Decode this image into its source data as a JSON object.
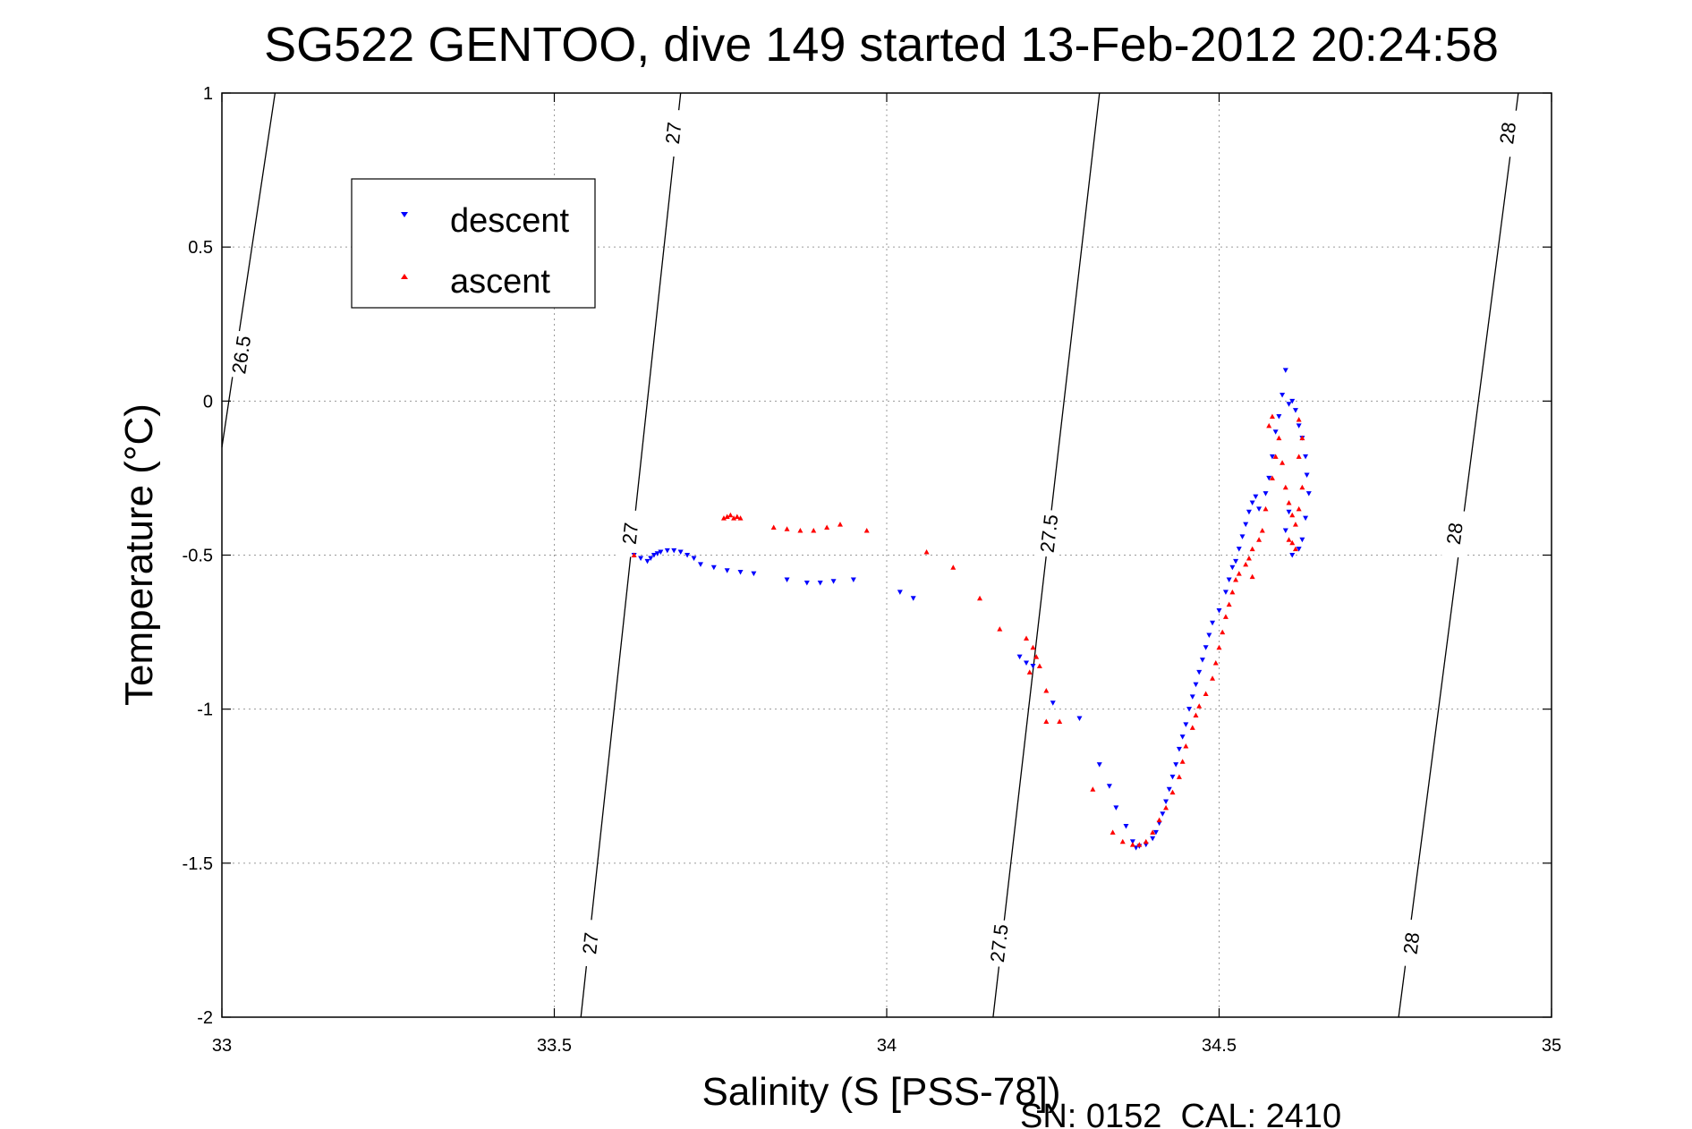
{
  "chart_data": {
    "type": "scatter",
    "title": "SG522 GENTOO, dive 149 started 13-Feb-2012 20:24:58",
    "xlabel": "Salinity (S [PSS-78])",
    "ylabel": "Temperature (°C)",
    "xlim": [
      33,
      35
    ],
    "ylim": [
      -2,
      1
    ],
    "x_ticks": [
      33,
      33.5,
      34,
      34.5,
      35
    ],
    "x_tick_labels": [
      "33",
      "33.5",
      "34",
      "34.5",
      "35"
    ],
    "y_ticks": [
      -2,
      -1.5,
      -1,
      -0.5,
      0,
      0.5,
      1
    ],
    "y_tick_labels": [
      "-2",
      "-1.5",
      "-1",
      "-0.5",
      "0",
      "0.5",
      "1"
    ],
    "grid": true,
    "legend_position": "top-left",
    "footer": "SN: 0152  CAL: 2410",
    "density_contours": [
      {
        "sigma": 26.5,
        "points": [
          [
            33.0,
            -0.15
          ],
          [
            33.08,
            1.0
          ]
        ],
        "labels": [
          {
            "text": "26.5",
            "x": 33.03,
            "y": 0.15
          }
        ]
      },
      {
        "sigma": 27,
        "points": [
          [
            33.54,
            -2.0
          ],
          [
            33.69,
            1.0
          ]
        ],
        "labels": [
          {
            "text": "27",
            "x": 33.555,
            "y": -1.76
          },
          {
            "text": "27",
            "x": 33.615,
            "y": -0.43
          },
          {
            "text": "27",
            "x": 33.68,
            "y": 0.87
          }
        ]
      },
      {
        "sigma": 27.5,
        "points": [
          [
            34.16,
            -2.0
          ],
          [
            34.32,
            1.0
          ]
        ],
        "labels": [
          {
            "text": "27.5",
            "x": 34.17,
            "y": -1.76
          },
          {
            "text": "27.5",
            "x": 34.245,
            "y": -0.43
          }
        ]
      },
      {
        "sigma": 28,
        "points": [
          [
            34.77,
            -2.0
          ],
          [
            34.95,
            1.0
          ]
        ],
        "labels": [
          {
            "text": "28",
            "x": 34.79,
            "y": -1.76
          },
          {
            "text": "28",
            "x": 34.855,
            "y": -0.43
          },
          {
            "text": "28",
            "x": 34.935,
            "y": 0.87
          }
        ]
      }
    ],
    "series": [
      {
        "name": "descent",
        "color": "#0000ff",
        "marker": "triangle-down",
        "points": [
          [
            33.62,
            -0.5
          ],
          [
            33.63,
            -0.51
          ],
          [
            33.64,
            -0.52
          ],
          [
            33.645,
            -0.51
          ],
          [
            33.65,
            -0.5
          ],
          [
            33.655,
            -0.495
          ],
          [
            33.66,
            -0.49
          ],
          [
            33.67,
            -0.485
          ],
          [
            33.68,
            -0.485
          ],
          [
            33.69,
            -0.49
          ],
          [
            33.7,
            -0.5
          ],
          [
            33.71,
            -0.51
          ],
          [
            33.72,
            -0.53
          ],
          [
            33.74,
            -0.54
          ],
          [
            33.76,
            -0.55
          ],
          [
            33.78,
            -0.555
          ],
          [
            33.8,
            -0.56
          ],
          [
            33.85,
            -0.58
          ],
          [
            33.88,
            -0.59
          ],
          [
            33.9,
            -0.59
          ],
          [
            33.92,
            -0.585
          ],
          [
            33.95,
            -0.58
          ],
          [
            34.02,
            -0.62
          ],
          [
            34.04,
            -0.64
          ],
          [
            34.2,
            -0.83
          ],
          [
            34.21,
            -0.85
          ],
          [
            34.22,
            -0.86
          ],
          [
            34.25,
            -0.98
          ],
          [
            34.29,
            -1.03
          ],
          [
            34.32,
            -1.18
          ],
          [
            34.335,
            -1.25
          ],
          [
            34.345,
            -1.32
          ],
          [
            34.36,
            -1.38
          ],
          [
            34.37,
            -1.43
          ],
          [
            34.375,
            -1.45
          ],
          [
            34.38,
            -1.445
          ],
          [
            34.39,
            -1.44
          ],
          [
            34.4,
            -1.42
          ],
          [
            34.405,
            -1.4
          ],
          [
            34.41,
            -1.37
          ],
          [
            34.415,
            -1.34
          ],
          [
            34.42,
            -1.3
          ],
          [
            34.425,
            -1.26
          ],
          [
            34.43,
            -1.22
          ],
          [
            34.435,
            -1.18
          ],
          [
            34.44,
            -1.13
          ],
          [
            34.445,
            -1.09
          ],
          [
            34.45,
            -1.05
          ],
          [
            34.455,
            -1.0
          ],
          [
            34.46,
            -0.96
          ],
          [
            34.465,
            -0.92
          ],
          [
            34.47,
            -0.88
          ],
          [
            34.475,
            -0.84
          ],
          [
            34.48,
            -0.8
          ],
          [
            34.485,
            -0.76
          ],
          [
            34.49,
            -0.72
          ],
          [
            34.5,
            -0.68
          ],
          [
            34.51,
            -0.62
          ],
          [
            34.515,
            -0.58
          ],
          [
            34.52,
            -0.54
          ],
          [
            34.525,
            -0.52
          ],
          [
            34.53,
            -0.48
          ],
          [
            34.535,
            -0.44
          ],
          [
            34.54,
            -0.4
          ],
          [
            34.545,
            -0.36
          ],
          [
            34.55,
            -0.33
          ],
          [
            34.555,
            -0.31
          ],
          [
            34.56,
            -0.35
          ],
          [
            34.57,
            -0.3
          ],
          [
            34.575,
            -0.25
          ],
          [
            34.58,
            -0.18
          ],
          [
            34.585,
            -0.1
          ],
          [
            34.59,
            -0.05
          ],
          [
            34.595,
            0.02
          ],
          [
            34.6,
            0.1
          ],
          [
            34.605,
            -0.01
          ],
          [
            34.61,
            0.0
          ],
          [
            34.615,
            -0.03
          ],
          [
            34.62,
            -0.08
          ],
          [
            34.625,
            -0.12
          ],
          [
            34.63,
            -0.18
          ],
          [
            34.632,
            -0.24
          ],
          [
            34.635,
            -0.3
          ],
          [
            34.63,
            -0.38
          ],
          [
            34.625,
            -0.45
          ],
          [
            34.62,
            -0.48
          ],
          [
            34.61,
            -0.5
          ],
          [
            34.6,
            -0.42
          ],
          [
            34.605,
            -0.36
          ]
        ]
      },
      {
        "name": "ascent",
        "color": "#ff0000",
        "marker": "triangle-up",
        "points": [
          [
            33.62,
            -0.5
          ],
          [
            33.755,
            -0.38
          ],
          [
            33.76,
            -0.375
          ],
          [
            33.765,
            -0.37
          ],
          [
            33.77,
            -0.38
          ],
          [
            33.775,
            -0.375
          ],
          [
            33.78,
            -0.38
          ],
          [
            33.83,
            -0.41
          ],
          [
            33.85,
            -0.415
          ],
          [
            33.87,
            -0.42
          ],
          [
            33.89,
            -0.42
          ],
          [
            33.91,
            -0.41
          ],
          [
            33.93,
            -0.4
          ],
          [
            33.97,
            -0.42
          ],
          [
            34.06,
            -0.49
          ],
          [
            34.1,
            -0.54
          ],
          [
            34.14,
            -0.64
          ],
          [
            34.17,
            -0.74
          ],
          [
            34.21,
            -0.77
          ],
          [
            34.22,
            -0.8
          ],
          [
            34.225,
            -0.83
          ],
          [
            34.23,
            -0.86
          ],
          [
            34.215,
            -0.88
          ],
          [
            34.24,
            -0.94
          ],
          [
            34.24,
            -1.04
          ],
          [
            34.26,
            -1.04
          ],
          [
            34.31,
            -1.26
          ],
          [
            34.34,
            -1.4
          ],
          [
            34.355,
            -1.43
          ],
          [
            34.37,
            -1.44
          ],
          [
            34.38,
            -1.44
          ],
          [
            34.39,
            -1.43
          ],
          [
            34.4,
            -1.4
          ],
          [
            34.41,
            -1.36
          ],
          [
            34.42,
            -1.32
          ],
          [
            34.43,
            -1.27
          ],
          [
            34.44,
            -1.22
          ],
          [
            34.445,
            -1.17
          ],
          [
            34.45,
            -1.12
          ],
          [
            34.46,
            -1.06
          ],
          [
            34.465,
            -1.02
          ],
          [
            34.47,
            -0.99
          ],
          [
            34.48,
            -0.95
          ],
          [
            34.49,
            -0.9
          ],
          [
            34.495,
            -0.85
          ],
          [
            34.5,
            -0.8
          ],
          [
            34.505,
            -0.75
          ],
          [
            34.51,
            -0.7
          ],
          [
            34.515,
            -0.66
          ],
          [
            34.52,
            -0.62
          ],
          [
            34.525,
            -0.58
          ],
          [
            34.53,
            -0.56
          ],
          [
            34.54,
            -0.53
          ],
          [
            34.545,
            -0.51
          ],
          [
            34.55,
            -0.48
          ],
          [
            34.56,
            -0.45
          ],
          [
            34.565,
            -0.42
          ],
          [
            34.55,
            -0.57
          ],
          [
            34.57,
            -0.35
          ],
          [
            34.58,
            -0.25
          ],
          [
            34.585,
            -0.18
          ],
          [
            34.59,
            -0.12
          ],
          [
            34.575,
            -0.08
          ],
          [
            34.58,
            -0.05
          ],
          [
            34.595,
            -0.2
          ],
          [
            34.6,
            -0.28
          ],
          [
            34.605,
            -0.33
          ],
          [
            34.61,
            -0.37
          ],
          [
            34.615,
            -0.4
          ],
          [
            34.62,
            -0.35
          ],
          [
            34.625,
            -0.28
          ],
          [
            34.62,
            -0.18
          ],
          [
            34.625,
            -0.12
          ],
          [
            34.61,
            -0.46
          ],
          [
            34.615,
            -0.48
          ],
          [
            34.605,
            -0.45
          ],
          [
            34.62,
            -0.06
          ]
        ]
      }
    ]
  }
}
